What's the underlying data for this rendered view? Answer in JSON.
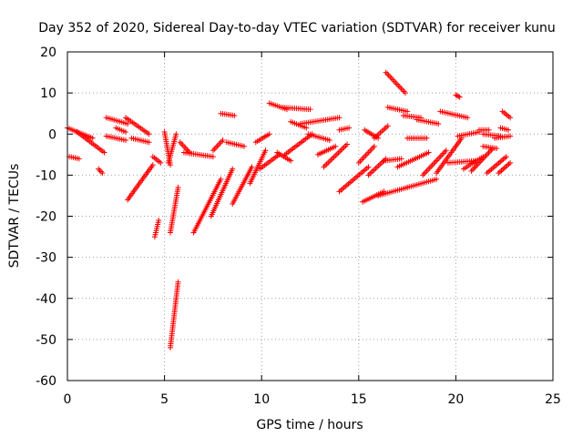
{
  "chart_data": {
    "type": "scatter",
    "title": "Day 352 of 2020, Sidereal Day-to-day VTEC variation (SDTVAR) for receiver kunu",
    "xlabel": "GPS time / hours",
    "ylabel": "SDTVAR / TECUs",
    "xlim": [
      0,
      25
    ],
    "ylim": [
      -60,
      20
    ],
    "xticks": [
      0,
      5,
      10,
      15,
      20,
      25
    ],
    "yticks": [
      -60,
      -50,
      -40,
      -30,
      -20,
      -10,
      0,
      10,
      20
    ],
    "grid": true,
    "marker": "+",
    "color": "#ff0000",
    "arcs": [
      {
        "x0": 0.0,
        "x1": 1.3,
        "y0": 1.5,
        "y1": -1.0
      },
      {
        "x0": 0.5,
        "x1": 1.9,
        "y0": 0.5,
        "y1": -4.5
      },
      {
        "x0": 0.1,
        "x1": 0.6,
        "y0": -5.5,
        "y1": -6.0
      },
      {
        "x0": 1.6,
        "x1": 1.8,
        "y0": -8.5,
        "y1": -9.5
      },
      {
        "x0": 2.0,
        "x1": 3.1,
        "y0": 4.0,
        "y1": 2.5
      },
      {
        "x0": 2.0,
        "x1": 3.0,
        "y0": -0.5,
        "y1": -1.5
      },
      {
        "x0": 2.5,
        "x1": 3.0,
        "y0": 1.5,
        "y1": 0.5
      },
      {
        "x0": 3.0,
        "x1": 4.2,
        "y0": 4.0,
        "y1": 0.0
      },
      {
        "x0": 3.3,
        "x1": 4.2,
        "y0": -1.0,
        "y1": -2.0
      },
      {
        "x0": 3.1,
        "x1": 4.4,
        "y0": -16.0,
        "y1": -7.5
      },
      {
        "x0": 4.4,
        "x1": 4.8,
        "y0": -5.5,
        "y1": -7.0
      },
      {
        "x0": 4.5,
        "x1": 4.7,
        "y0": -25.0,
        "y1": -21.0
      },
      {
        "x0": 5.0,
        "x1": 5.3,
        "y0": 0.5,
        "y1": -7.5
      },
      {
        "x0": 5.3,
        "x1": 5.7,
        "y0": -24.0,
        "y1": -13.0
      },
      {
        "x0": 5.3,
        "x1": 5.7,
        "y0": -52.0,
        "y1": -36.0
      },
      {
        "x0": 5.2,
        "x1": 5.6,
        "y0": -7.0,
        "y1": 0.0
      },
      {
        "x0": 5.8,
        "x1": 6.3,
        "y0": -2.0,
        "y1": -4.5
      },
      {
        "x0": 6.0,
        "x1": 7.5,
        "y0": -4.5,
        "y1": -5.5
      },
      {
        "x0": 6.5,
        "x1": 7.9,
        "y0": -24.0,
        "y1": -11.0
      },
      {
        "x0": 7.4,
        "x1": 8.5,
        "y0": -20.0,
        "y1": -8.5
      },
      {
        "x0": 7.5,
        "x1": 8.0,
        "y0": -4.0,
        "y1": -1.5
      },
      {
        "x0": 7.9,
        "x1": 8.6,
        "y0": 5.0,
        "y1": 4.5
      },
      {
        "x0": 8.2,
        "x1": 9.1,
        "y0": -2.0,
        "y1": -3.0
      },
      {
        "x0": 8.5,
        "x1": 9.5,
        "y0": -17.0,
        "y1": -8.0
      },
      {
        "x0": 9.4,
        "x1": 10.2,
        "y0": -12.0,
        "y1": -4.0
      },
      {
        "x0": 9.7,
        "x1": 10.4,
        "y0": -2.0,
        "y1": 0.0
      },
      {
        "x0": 9.9,
        "x1": 10.9,
        "y0": -8.5,
        "y1": -5.0
      },
      {
        "x0": 10.4,
        "x1": 11.3,
        "y0": 7.5,
        "y1": 6.0
      },
      {
        "x0": 11.0,
        "x1": 12.5,
        "y0": 6.5,
        "y1": 6.0
      },
      {
        "x0": 10.8,
        "x1": 11.5,
        "y0": -4.5,
        "y1": -6.5
      },
      {
        "x0": 11.2,
        "x1": 12.6,
        "y0": -5.0,
        "y1": 0.0
      },
      {
        "x0": 11.5,
        "x1": 12.3,
        "y0": 3.0,
        "y1": 1.5
      },
      {
        "x0": 12.0,
        "x1": 14.0,
        "y0": 2.5,
        "y1": 4.0
      },
      {
        "x0": 12.4,
        "x1": 13.5,
        "y0": 0.0,
        "y1": -1.5
      },
      {
        "x0": 12.9,
        "x1": 13.8,
        "y0": -5.0,
        "y1": -3.0
      },
      {
        "x0": 13.2,
        "x1": 14.4,
        "y0": -8.0,
        "y1": -2.5
      },
      {
        "x0": 14.0,
        "x1": 14.5,
        "y0": 1.0,
        "y1": 1.5
      },
      {
        "x0": 14.0,
        "x1": 15.5,
        "y0": -14.0,
        "y1": -8.0
      },
      {
        "x0": 15.0,
        "x1": 15.8,
        "y0": -7.0,
        "y1": -3.0
      },
      {
        "x0": 15.2,
        "x1": 16.3,
        "y0": -16.5,
        "y1": -14.0
      },
      {
        "x0": 15.3,
        "x1": 16.0,
        "y0": 1.0,
        "y1": -1.0
      },
      {
        "x0": 15.5,
        "x1": 16.4,
        "y0": -10.0,
        "y1": -6.0
      },
      {
        "x0": 15.8,
        "x1": 16.5,
        "y0": -1.0,
        "y1": 2.0
      },
      {
        "x0": 16.0,
        "x1": 17.5,
        "y0": -15.0,
        "y1": -13.0
      },
      {
        "x0": 16.3,
        "x1": 17.2,
        "y0": -6.5,
        "y1": -6.0
      },
      {
        "x0": 16.4,
        "x1": 17.4,
        "y0": 15.0,
        "y1": 10.0
      },
      {
        "x0": 16.5,
        "x1": 17.5,
        "y0": 6.5,
        "y1": 5.5
      },
      {
        "x0": 17.0,
        "x1": 18.6,
        "y0": -8.0,
        "y1": -4.5
      },
      {
        "x0": 17.3,
        "x1": 18.2,
        "y0": 4.5,
        "y1": 4.0
      },
      {
        "x0": 17.5,
        "x1": 19.0,
        "y0": -13.0,
        "y1": -11.0
      },
      {
        "x0": 17.5,
        "x1": 18.5,
        "y0": -1.0,
        "y1": -1.0
      },
      {
        "x0": 18.0,
        "x1": 19.1,
        "y0": 3.5,
        "y1": 2.5
      },
      {
        "x0": 18.3,
        "x1": 19.5,
        "y0": -10.0,
        "y1": -4.0
      },
      {
        "x0": 19.0,
        "x1": 20.3,
        "y0": -9.5,
        "y1": -1.0
      },
      {
        "x0": 19.2,
        "x1": 20.6,
        "y0": 5.5,
        "y1": 4.0
      },
      {
        "x0": 19.6,
        "x1": 21.0,
        "y0": -7.0,
        "y1": -6.5
      },
      {
        "x0": 20.0,
        "x1": 20.2,
        "y0": 9.5,
        "y1": 9.0
      },
      {
        "x0": 20.1,
        "x1": 21.2,
        "y0": -0.5,
        "y1": 0.5
      },
      {
        "x0": 20.4,
        "x1": 21.4,
        "y0": -8.5,
        "y1": -5.5
      },
      {
        "x0": 20.8,
        "x1": 21.9,
        "y0": -9.0,
        "y1": -3.5
      },
      {
        "x0": 21.2,
        "x1": 21.7,
        "y0": 1.0,
        "y1": 1.0
      },
      {
        "x0": 21.4,
        "x1": 22.3,
        "y0": 0.0,
        "y1": -0.5
      },
      {
        "x0": 21.4,
        "x1": 22.1,
        "y0": -3.0,
        "y1": -3.5
      },
      {
        "x0": 21.6,
        "x1": 22.6,
        "y0": -9.5,
        "y1": -5.5
      },
      {
        "x0": 22.0,
        "x1": 22.8,
        "y0": -1.0,
        "y1": -0.5
      },
      {
        "x0": 22.3,
        "x1": 22.7,
        "y0": 1.5,
        "y1": 1.0
      },
      {
        "x0": 22.4,
        "x1": 22.8,
        "y0": 5.5,
        "y1": 4.0
      },
      {
        "x0": 22.2,
        "x1": 22.8,
        "y0": -9.5,
        "y1": -7.0
      }
    ]
  }
}
